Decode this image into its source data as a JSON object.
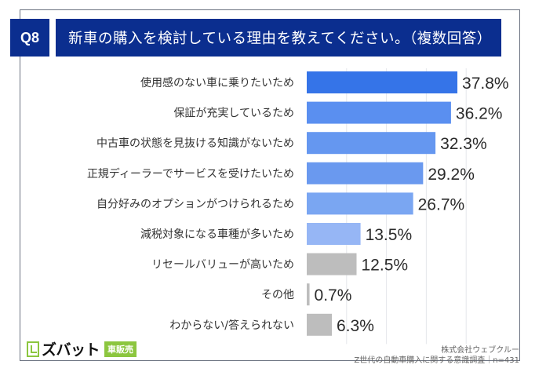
{
  "header": {
    "question_number": "Q8",
    "title": "新車の購入を検討している理由を教えてください。（複数回答）"
  },
  "logo": {
    "name": "ズバット",
    "tag": "車販売"
  },
  "source": {
    "company": "株式会社ウェブクルー",
    "survey": "Z世代の自動車購入に関する意識調査｜n=431"
  },
  "colors": {
    "header_bg": "#0b2e8f",
    "bar_colors": [
      "#3574e8",
      "#5a8ff0",
      "#6597f0",
      "#6a99ef",
      "#7aa6f2",
      "#96b6f5",
      "#bdbdbd",
      "#bdbdbd",
      "#bdbdbd"
    ],
    "gridline": "#e5e7eb"
  },
  "chart_data": {
    "type": "bar",
    "orientation": "horizontal",
    "title": "新車の購入を検討している理由を教えてください。（複数回答）",
    "xlabel": "",
    "ylabel": "",
    "xlim": [
      0,
      40
    ],
    "grid": true,
    "value_suffix": "%",
    "categories": [
      "使用感のない車に乗りたいため",
      "保証が充実しているため",
      "中古車の状態を見抜ける知識がないため",
      "正規ディーラーでサービスを受けたいため",
      "自分好みのオプションがつけられるため",
      "減税対象になる車種が多いため",
      "リセールバリューが高いため",
      "その他",
      "わからない/答えられない"
    ],
    "values": [
      37.8,
      36.2,
      32.3,
      29.2,
      26.7,
      13.5,
      12.5,
      0.7,
      6.3
    ],
    "value_labels": [
      "37.8%",
      "36.2%",
      "32.3%",
      "29.2%",
      "26.7%",
      "13.5%",
      "12.5%",
      "0.7%",
      "6.3%"
    ]
  }
}
